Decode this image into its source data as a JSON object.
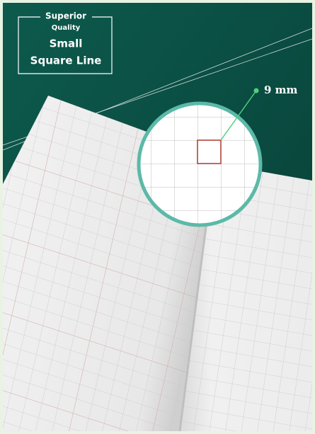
{
  "badge": {
    "line1": "Superior",
    "line2": "Quality",
    "line3": "Small",
    "line4": "Square Line"
  },
  "callout": {
    "label": "9 mm"
  }
}
